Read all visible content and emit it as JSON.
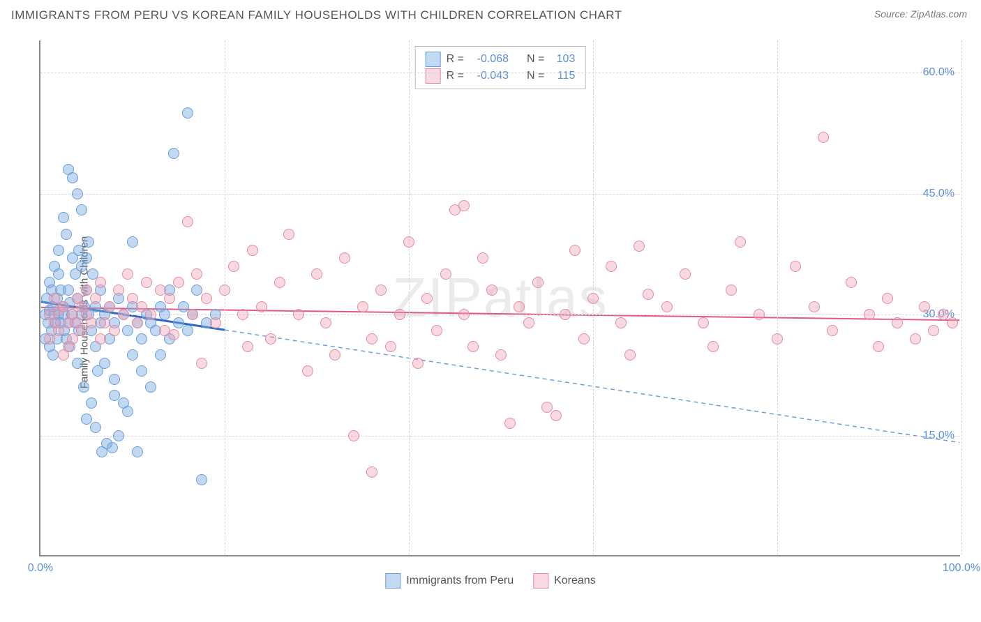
{
  "title": "IMMIGRANTS FROM PERU VS KOREAN FAMILY HOUSEHOLDS WITH CHILDREN CORRELATION CHART",
  "source": "Source: ZipAtlas.com",
  "watermark": "ZIPatlas",
  "y_axis_label": "Family Households with Children",
  "chart": {
    "type": "scatter",
    "background_color": "#ffffff",
    "grid_color": "#d8d8d8",
    "axis_color": "#888888",
    "xlim": [
      0,
      100
    ],
    "ylim": [
      0,
      64
    ],
    "x_ticks": [
      0,
      20,
      40,
      60,
      80,
      100
    ],
    "x_tick_labels": {
      "0": "0.0%",
      "100": "100.0%"
    },
    "y_ticks": [
      15,
      30,
      45,
      60
    ],
    "y_tick_labels": {
      "15": "15.0%",
      "30": "30.0%",
      "45": "45.0%",
      "60": "60.0%"
    },
    "tick_label_color": "#5b8fd6",
    "tick_label_fontsize": 16,
    "marker_radius": 8,
    "series": [
      {
        "name": "Immigrants from Peru",
        "fill_color": "rgba(120,170,225,0.45)",
        "stroke_color": "#6a9fd8",
        "R": "-0.068",
        "N": "103",
        "trend_solid": {
          "x1": 0,
          "y1": 31.5,
          "x2": 20,
          "y2": 28.0,
          "color": "#2e6bc0",
          "width": 3
        },
        "trend_dashed": {
          "x1": 20,
          "y1": 28.0,
          "x2": 100,
          "y2": 14.0,
          "color": "#6a9fd8",
          "width": 1.5,
          "dash": "6,5"
        },
        "points": [
          [
            0.5,
            30
          ],
          [
            0.5,
            27
          ],
          [
            0.7,
            32
          ],
          [
            0.8,
            29
          ],
          [
            1,
            34
          ],
          [
            1,
            26
          ],
          [
            1,
            30.5
          ],
          [
            1.2,
            28
          ],
          [
            1.2,
            33
          ],
          [
            1.4,
            31
          ],
          [
            1.4,
            25
          ],
          [
            1.5,
            36
          ],
          [
            1.5,
            30
          ],
          [
            1.7,
            29
          ],
          [
            1.8,
            27
          ],
          [
            1.8,
            32
          ],
          [
            2,
            30
          ],
          [
            2,
            38
          ],
          [
            2,
            35
          ],
          [
            2.2,
            29
          ],
          [
            2.2,
            33
          ],
          [
            2.4,
            31
          ],
          [
            2.5,
            42
          ],
          [
            2.6,
            28
          ],
          [
            2.6,
            30
          ],
          [
            2.8,
            40
          ],
          [
            2.8,
            27
          ],
          [
            3,
            33
          ],
          [
            3,
            48
          ],
          [
            3,
            29
          ],
          [
            3.2,
            31.5
          ],
          [
            3.2,
            26
          ],
          [
            3.4,
            30
          ],
          [
            3.5,
            47
          ],
          [
            3.5,
            37
          ],
          [
            3.8,
            29
          ],
          [
            3.8,
            35
          ],
          [
            4,
            32
          ],
          [
            4,
            45
          ],
          [
            4,
            24
          ],
          [
            4.2,
            28
          ],
          [
            4.2,
            38
          ],
          [
            4.5,
            36
          ],
          [
            4.5,
            30
          ],
          [
            4.5,
            43
          ],
          [
            4.7,
            21
          ],
          [
            4.8,
            31
          ],
          [
            5,
            33
          ],
          [
            5,
            37
          ],
          [
            5,
            17
          ],
          [
            5.2,
            30
          ],
          [
            5.2,
            39
          ],
          [
            5.5,
            19
          ],
          [
            5.5,
            28
          ],
          [
            5.7,
            35
          ],
          [
            6,
            26
          ],
          [
            6,
            31
          ],
          [
            6,
            16
          ],
          [
            6.2,
            23
          ],
          [
            6.5,
            29
          ],
          [
            6.5,
            33
          ],
          [
            6.7,
            13
          ],
          [
            7,
            30
          ],
          [
            7,
            24
          ],
          [
            7.2,
            14
          ],
          [
            7.5,
            31
          ],
          [
            7.5,
            27
          ],
          [
            7.8,
            13.5
          ],
          [
            8,
            29
          ],
          [
            8,
            22
          ],
          [
            8.5,
            32
          ],
          [
            8.5,
            15
          ],
          [
            9,
            19
          ],
          [
            9,
            30
          ],
          [
            9.5,
            28
          ],
          [
            9.5,
            18
          ],
          [
            10,
            31
          ],
          [
            10,
            25
          ],
          [
            10.5,
            13
          ],
          [
            10.5,
            29
          ],
          [
            11,
            27
          ],
          [
            11,
            23
          ],
          [
            11.5,
            30
          ],
          [
            12,
            21
          ],
          [
            12,
            29
          ],
          [
            12.5,
            28
          ],
          [
            13,
            31
          ],
          [
            13,
            25
          ],
          [
            13.5,
            30
          ],
          [
            14,
            33
          ],
          [
            14,
            27
          ],
          [
            14.5,
            50
          ],
          [
            15,
            29
          ],
          [
            15.5,
            31
          ],
          [
            16,
            28
          ],
          [
            16,
            55
          ],
          [
            16.5,
            30
          ],
          [
            17,
            33
          ],
          [
            17.5,
            9.5
          ],
          [
            18,
            29
          ],
          [
            19,
            30
          ],
          [
            10,
            39
          ],
          [
            8,
            20
          ]
        ]
      },
      {
        "name": "Koreans",
        "fill_color": "rgba(240,160,180,0.40)",
        "stroke_color": "#e38ba2",
        "R": "-0.043",
        "N": "115",
        "trend_solid": {
          "x1": 0,
          "y1": 30.8,
          "x2": 100,
          "y2": 29.2,
          "color": "#e05a84",
          "width": 2
        },
        "points": [
          [
            1,
            30
          ],
          [
            1,
            27
          ],
          [
            1.5,
            32
          ],
          [
            1.5,
            29
          ],
          [
            2,
            30.5
          ],
          [
            2,
            28
          ],
          [
            2.5,
            25
          ],
          [
            2.5,
            31
          ],
          [
            3,
            29
          ],
          [
            3,
            26
          ],
          [
            3.5,
            30
          ],
          [
            3.5,
            27
          ],
          [
            4,
            32
          ],
          [
            4,
            29
          ],
          [
            4.5,
            28
          ],
          [
            4.5,
            31
          ],
          [
            5,
            30
          ],
          [
            5,
            33
          ],
          [
            5.5,
            29
          ],
          [
            6,
            32
          ],
          [
            6.5,
            27
          ],
          [
            6.5,
            34
          ],
          [
            7,
            29
          ],
          [
            7.5,
            31
          ],
          [
            8,
            28
          ],
          [
            8.5,
            33
          ],
          [
            9,
            30
          ],
          [
            9.5,
            35
          ],
          [
            10,
            32
          ],
          [
            10.5,
            29
          ],
          [
            11,
            31
          ],
          [
            11.5,
            34
          ],
          [
            12,
            30
          ],
          [
            13,
            33
          ],
          [
            13.5,
            28
          ],
          [
            14,
            32
          ],
          [
            14.5,
            27.5
          ],
          [
            15,
            34
          ],
          [
            16,
            41.5
          ],
          [
            16.5,
            30
          ],
          [
            17,
            35
          ],
          [
            17.5,
            24
          ],
          [
            18,
            32
          ],
          [
            19,
            29
          ],
          [
            20,
            33
          ],
          [
            21,
            36
          ],
          [
            22,
            30
          ],
          [
            22.5,
            26
          ],
          [
            23,
            38
          ],
          [
            24,
            31
          ],
          [
            25,
            27
          ],
          [
            26,
            34
          ],
          [
            27,
            40
          ],
          [
            28,
            30
          ],
          [
            29,
            23
          ],
          [
            30,
            35
          ],
          [
            31,
            29
          ],
          [
            32,
            25
          ],
          [
            33,
            37
          ],
          [
            34,
            15
          ],
          [
            35,
            31
          ],
          [
            36,
            27
          ],
          [
            36,
            10.5
          ],
          [
            37,
            33
          ],
          [
            38,
            26
          ],
          [
            39,
            30
          ],
          [
            40,
            39
          ],
          [
            41,
            24
          ],
          [
            42,
            32
          ],
          [
            43,
            28
          ],
          [
            44,
            35
          ],
          [
            45,
            43
          ],
          [
            46,
            43.5
          ],
          [
            46,
            30
          ],
          [
            47,
            26
          ],
          [
            48,
            37
          ],
          [
            49,
            33
          ],
          [
            50,
            25
          ],
          [
            51,
            16.5
          ],
          [
            52,
            31
          ],
          [
            53,
            29
          ],
          [
            54,
            34
          ],
          [
            55,
            18.5
          ],
          [
            56,
            17.5
          ],
          [
            57,
            30
          ],
          [
            58,
            38
          ],
          [
            59,
            27
          ],
          [
            60,
            32
          ],
          [
            62,
            36
          ],
          [
            63,
            29
          ],
          [
            64,
            25
          ],
          [
            65,
            38.5
          ],
          [
            66,
            32.5
          ],
          [
            68,
            31
          ],
          [
            70,
            35
          ],
          [
            72,
            29
          ],
          [
            73,
            26
          ],
          [
            75,
            33
          ],
          [
            76,
            39
          ],
          [
            78,
            30
          ],
          [
            80,
            27
          ],
          [
            82,
            36
          ],
          [
            84,
            31
          ],
          [
            85,
            52
          ],
          [
            86,
            28
          ],
          [
            88,
            34
          ],
          [
            90,
            30
          ],
          [
            91,
            26
          ],
          [
            92,
            32
          ],
          [
            93,
            29
          ],
          [
            95,
            27
          ],
          [
            96,
            31
          ],
          [
            97,
            28
          ],
          [
            98,
            30
          ],
          [
            99,
            29
          ]
        ]
      }
    ]
  },
  "legend_top": {
    "stat_color": "#5b8fd6",
    "label_color": "#555555"
  },
  "legend_bottom": {
    "series1": "Immigrants from Peru",
    "series2": "Koreans"
  }
}
